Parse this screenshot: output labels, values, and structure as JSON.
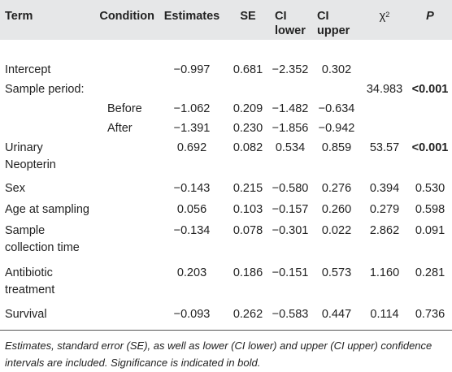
{
  "table": {
    "headers": {
      "term": "Term",
      "condition": "Condition",
      "estimates": "Estimates",
      "se": "SE",
      "ci_lower_1": "CI",
      "ci_lower_2": "lower",
      "ci_upper_1": "CI",
      "ci_upper_2": "upper",
      "chi_sq_base": "χ",
      "chi_sq_sup": "2",
      "p": "P"
    },
    "rows": [
      {
        "term": "Intercept",
        "condition": "",
        "estimates": "−0.997",
        "se": "0.681",
        "ci_lower": "−2.352",
        "ci_upper": "0.302",
        "chi_sq": "",
        "p": ""
      },
      {
        "term": "Sample period:",
        "condition": "",
        "estimates": "",
        "se": "",
        "ci_lower": "",
        "ci_upper": "",
        "chi_sq": "34.983",
        "p": "<0.001"
      },
      {
        "term": "",
        "condition": "Before",
        "estimates": "−1.062",
        "se": "0.209",
        "ci_lower": "−1.482",
        "ci_upper": "−0.634",
        "chi_sq": "",
        "p": ""
      },
      {
        "term": "",
        "condition": "After",
        "estimates": "−1.391",
        "se": "0.230",
        "ci_lower": "−1.856",
        "ci_upper": "−0.942",
        "chi_sq": "",
        "p": ""
      },
      {
        "term": "Urinary Neopterin",
        "condition": "",
        "estimates": "0.692",
        "se": "0.082",
        "ci_lower": "0.534",
        "ci_upper": "0.859",
        "chi_sq": "53.57",
        "p": "<0.001"
      },
      {
        "term": "Sex",
        "condition": "",
        "estimates": "−0.143",
        "se": "0.215",
        "ci_lower": "−0.580",
        "ci_upper": "0.276",
        "chi_sq": "0.394",
        "p": "0.530"
      },
      {
        "term": "Age at sampling",
        "condition": "",
        "estimates": "0.056",
        "se": "0.103",
        "ci_lower": "−0.157",
        "ci_upper": "0.260",
        "chi_sq": "0.279",
        "p": "0.598"
      },
      {
        "term": "Sample collection time",
        "condition": "",
        "estimates": "−0.134",
        "se": "0.078",
        "ci_lower": "−0.301",
        "ci_upper": "0.022",
        "chi_sq": "2.862",
        "p": "0.091"
      },
      {
        "term": "Antibiotic treatment",
        "condition": "",
        "estimates": "0.203",
        "se": "0.186",
        "ci_lower": "−0.151",
        "ci_upper": "0.573",
        "chi_sq": "1.160",
        "p": "0.281"
      },
      {
        "term": "Survival",
        "condition": "",
        "estimates": "−0.093",
        "se": "0.262",
        "ci_lower": "−0.583",
        "ci_upper": "0.447",
        "chi_sq": "0.114",
        "p": "0.736"
      }
    ],
    "footnote": "Estimates, standard error (SE), as well as lower (CI lower) and upper (CI upper) confidence intervals are included. Significance is indicated in bold."
  },
  "colors": {
    "header_background": "#e6e7e8",
    "text": "#222222",
    "rule": "#555555"
  }
}
